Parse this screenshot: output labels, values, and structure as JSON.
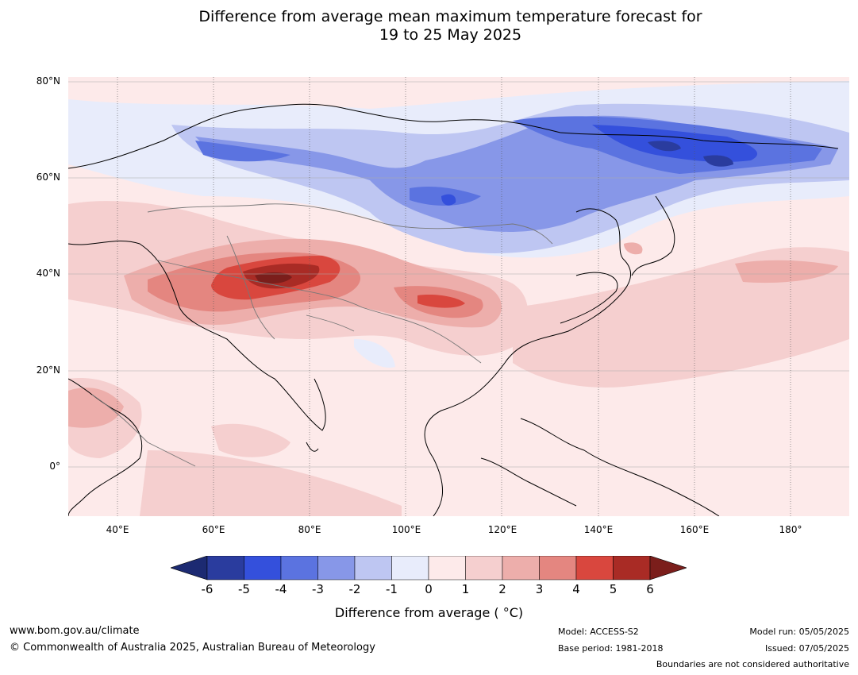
{
  "title_line1": "Difference from average mean maximum temperature forecast for",
  "title_line2": "19 to 25 May 2025",
  "lat_labels": [
    "80°N",
    "60°N",
    "40°N",
    "20°N",
    "0°"
  ],
  "lon_labels": [
    "40°E",
    "60°E",
    "80°E",
    "100°E",
    "120°E",
    "140°E",
    "160°E",
    "180°"
  ],
  "colorbar": {
    "ticks": [
      "-6",
      "-5",
      "-4",
      "-3",
      "-2",
      "-1",
      "0",
      "1",
      "2",
      "3",
      "4",
      "5",
      "6"
    ],
    "colors": [
      "#2a3c9e",
      "#3450dc",
      "#5b73e0",
      "#8797e8",
      "#bec6f2",
      "#e8ecfb",
      "#fdeaea",
      "#f5cfcf",
      "#edaeab",
      "#e48680",
      "#d9473e",
      "#a92b25"
    ],
    "under_color": "#1c2a72",
    "over_color": "#7b1e1b",
    "label": "Difference from average ( °C)"
  },
  "footer": {
    "website": "www.bom.gov.au/climate",
    "copyright": "© Commonwealth of Australia 2025, Australian Bureau of Meteorology",
    "model": "Model: ACCESS-S2",
    "base_period": "Base period: 1981-2018",
    "model_run": "Model run: 05/05/2025",
    "issued": "Issued: 07/05/2025",
    "disclaimer": "Boundaries are not considered authoritative"
  }
}
